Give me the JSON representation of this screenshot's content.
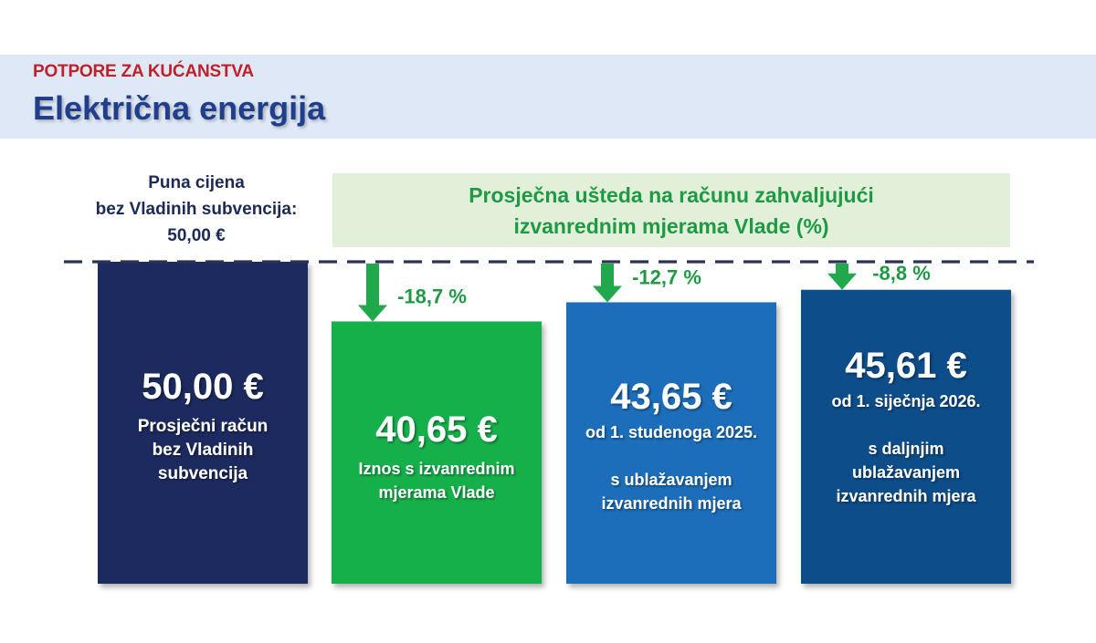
{
  "header": {
    "kicker": "POTPORE ZA KUĆANSTVA",
    "title": "Električna energija"
  },
  "reference_note": [
    "Puna cijena",
    "bez Vladinih subvencija:",
    "50,00 €"
  ],
  "banner": [
    "Prosječna ušteda na računu zahvaljujući",
    "izvanrednim mjerama Vlade (%)"
  ],
  "colors": {
    "navy": "#1e2b5e",
    "green": "#13b04b",
    "blue": "#1b6ebb",
    "darkblue": "#114e8a",
    "arrow_green": "#22a84c",
    "label_green": "#1e9a44",
    "title_blue": "#1f3e8c",
    "kicker_red": "#c0202a"
  },
  "chart_data": {
    "type": "bar",
    "unit": "€",
    "reference_value": 50.0,
    "categories": [
      "Prosječni račun bez Vladinih subvencija",
      "Iznos s izvanrednim mjerama Vlade",
      "od 1. studenoga 2025. s ublažavanjem izvanrednih mjera",
      "od 1. siječnja 2026. s daljnjim ublažavanjem izvanrednih mjera"
    ],
    "values": [
      50.0,
      40.65,
      43.65,
      45.61
    ],
    "value_labels": [
      "50,00 €",
      "40,65 €",
      "43,65 €",
      "45,61 €"
    ],
    "change_labels": [
      "",
      "-18,7 %",
      "-12,7 %",
      "-8,8 %"
    ],
    "change_percent": [
      null,
      -18.7,
      -12.7,
      -8.8
    ],
    "bar_colors": [
      "#1e2b5e",
      "#13b04b",
      "#1b6ebb",
      "#114e8a"
    ],
    "descriptions": [
      [
        "Prosječni račun",
        "bez Vladinih",
        "subvencija"
      ],
      [
        "Iznos s izvanrednim",
        "mjerama Vlade"
      ],
      [
        "od 1. studenoga 2025.",
        "",
        "s ublažavanjem",
        "izvanrednih mjera"
      ],
      [
        "od 1. siječnja 2026.",
        "",
        "s daljnjim",
        "ublažavanjem",
        "izvanrednih mjera"
      ]
    ]
  }
}
